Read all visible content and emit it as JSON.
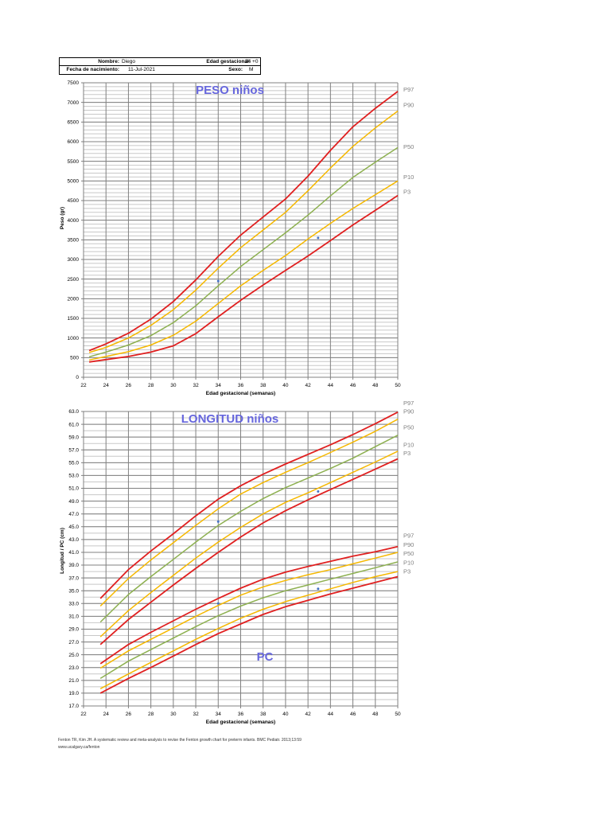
{
  "header": {
    "name_label": "Nombre:",
    "name_value": "Diego",
    "gest_age_label": "Edad gestacional:",
    "gest_age_value": "34 +0",
    "dob_label": "Fecha de nacimiento:",
    "dob_value": "11-Jul-2021",
    "sex_label": "Sexo:",
    "sex_value": "M"
  },
  "colors": {
    "p97_p3": "#e02020",
    "p90_p10": "#f5b800",
    "p50": "#8db050",
    "patient_point": "#4472c4",
    "title": "#6666dd",
    "grid_major": "#808080",
    "grid_minor": "#c8c8c8"
  },
  "footer": {
    "reference": "Fenton TR, Kim JH. A systematic review and meta-analysis to revise the Fenton growth chart for preterm infants. BMC Pediatr. 2013;13:59",
    "url": "www.ucalgary.ca/fenton"
  },
  "chart_data": [
    {
      "type": "line",
      "title": "PESO niños",
      "xlabel": "Edad gestacional (semanas)",
      "ylabel": "Peso (gr)",
      "xlim": [
        22,
        50
      ],
      "ylim": [
        0,
        7500
      ],
      "x_ticks": [
        "22",
        "24",
        "26",
        "28",
        "30",
        "32",
        "34",
        "36",
        "38",
        "40",
        "42",
        "44",
        "46",
        "48",
        "50"
      ],
      "y_ticks": [
        "0",
        "500",
        "1000",
        "1500",
        "2000",
        "2500",
        "3000",
        "3500",
        "4000",
        "4500",
        "5000",
        "5500",
        "6000",
        "6500",
        "7000",
        "7500"
      ],
      "grid": true,
      "legend_position": "right",
      "x": [
        22.5,
        24,
        26,
        28,
        30,
        32,
        34,
        36,
        38,
        40,
        42,
        44,
        46,
        48,
        50
      ],
      "series": [
        {
          "name": "P97",
          "color": "#e02020",
          "values": [
            680,
            850,
            1120,
            1480,
            1930,
            2480,
            3080,
            3620,
            4080,
            4540,
            5120,
            5780,
            6380,
            6850,
            7280
          ]
        },
        {
          "name": "P90",
          "color": "#f5b800",
          "values": [
            630,
            760,
            1000,
            1320,
            1720,
            2220,
            2780,
            3300,
            3750,
            4200,
            4750,
            5330,
            5880,
            6350,
            6780
          ]
        },
        {
          "name": "P50",
          "color": "#8db050",
          "values": [
            520,
            640,
            820,
            1060,
            1390,
            1820,
            2330,
            2820,
            3250,
            3680,
            4130,
            4620,
            5090,
            5480,
            5850
          ]
        },
        {
          "name": "P10",
          "color": "#f5b800",
          "values": [
            440,
            530,
            650,
            820,
            1070,
            1430,
            1880,
            2330,
            2720,
            3100,
            3520,
            3920,
            4300,
            4650,
            5000
          ]
        },
        {
          "name": "P3",
          "color": "#e02020",
          "values": [
            390,
            450,
            530,
            640,
            800,
            1110,
            1540,
            1960,
            2350,
            2720,
            3090,
            3480,
            3880,
            4250,
            4630
          ]
        }
      ],
      "patient_points": [
        {
          "x": 34,
          "y": 2450
        },
        {
          "x": 42.9,
          "y": 3550
        }
      ],
      "right_labels": [
        {
          "text": "P97",
          "y": 7330
        },
        {
          "text": "P90",
          "y": 6930
        },
        {
          "text": "P50",
          "y": 5870
        },
        {
          "text": "P10",
          "y": 5100
        },
        {
          "text": "P3",
          "y": 4720
        }
      ]
    },
    {
      "type": "line",
      "title": "LONGITUD niños",
      "subtitle": "PC",
      "xlabel": "Edad gestacional (semanas)",
      "ylabel": "Longitud / PC (cm)",
      "xlim": [
        22,
        50
      ],
      "ylim": [
        17,
        63
      ],
      "x_ticks": [
        "22",
        "24",
        "26",
        "28",
        "30",
        "32",
        "34",
        "36",
        "38",
        "40",
        "42",
        "44",
        "46",
        "48",
        "50"
      ],
      "y_ticks": [
        "17.0",
        "19.0",
        "21.0",
        "23.0",
        "25.0",
        "27.0",
        "29.0",
        "31.0",
        "33.0",
        "35.0",
        "37.0",
        "39.0",
        "41.0",
        "43.0",
        "45.0",
        "47.0",
        "49.0",
        "51.0",
        "53.0",
        "55.0",
        "57.0",
        "59.0",
        "61.0",
        "63.0"
      ],
      "grid": true,
      "legend_position": "right",
      "x": [
        23.5,
        26,
        28,
        30,
        32,
        34,
        36,
        38,
        40,
        42,
        44,
        46,
        48,
        50
      ],
      "series": [
        {
          "name": "Longitud P97",
          "color": "#e02020",
          "values": [
            33.8,
            38.3,
            41.2,
            43.9,
            46.7,
            49.3,
            51.4,
            53.2,
            54.8,
            56.3,
            57.8,
            59.4,
            61.1,
            62.9
          ]
        },
        {
          "name": "Longitud P90",
          "color": "#f5b800",
          "values": [
            32.6,
            36.9,
            39.8,
            42.5,
            45.2,
            47.8,
            50.1,
            51.9,
            53.5,
            55.0,
            56.6,
            58.2,
            59.9,
            61.8
          ]
        },
        {
          "name": "Longitud P50",
          "color": "#8db050",
          "values": [
            30.1,
            34.4,
            37.2,
            39.9,
            42.6,
            45.2,
            47.4,
            49.4,
            51.1,
            52.6,
            54.1,
            55.7,
            57.5,
            59.3
          ]
        },
        {
          "name": "Longitud P10",
          "color": "#f5b800",
          "values": [
            27.8,
            31.9,
            34.7,
            37.4,
            40.1,
            42.6,
            44.9,
            47.0,
            48.8,
            50.3,
            51.9,
            53.5,
            55.1,
            56.8
          ]
        },
        {
          "name": "Longitud P3",
          "color": "#e02020",
          "values": [
            26.6,
            30.5,
            33.2,
            35.9,
            38.5,
            41.0,
            43.4,
            45.6,
            47.5,
            49.2,
            50.8,
            52.4,
            54.0,
            55.6
          ]
        },
        {
          "name": "PC P97",
          "color": "#e02020",
          "values": [
            23.6,
            26.6,
            28.5,
            30.3,
            32.1,
            33.8,
            35.4,
            36.8,
            37.9,
            38.8,
            39.6,
            40.4,
            41.1,
            41.9
          ]
        },
        {
          "name": "PC P90",
          "color": "#f5b800",
          "values": [
            22.9,
            25.6,
            27.4,
            29.2,
            31.0,
            32.7,
            34.3,
            35.6,
            36.6,
            37.5,
            38.3,
            39.2,
            40.1,
            41.0
          ]
        },
        {
          "name": "PC P50",
          "color": "#8db050",
          "values": [
            21.3,
            24.0,
            25.8,
            27.6,
            29.4,
            31.1,
            32.6,
            33.9,
            35.0,
            35.9,
            36.8,
            37.7,
            38.6,
            39.5
          ]
        },
        {
          "name": "PC P10",
          "color": "#f5b800",
          "values": [
            19.7,
            22.0,
            23.8,
            25.6,
            27.4,
            29.1,
            30.7,
            32.1,
            33.3,
            34.3,
            35.3,
            36.3,
            37.2,
            38.0
          ]
        },
        {
          "name": "PC P3",
          "color": "#e02020",
          "values": [
            19.0,
            21.3,
            23.0,
            24.8,
            26.6,
            28.3,
            29.8,
            31.3,
            32.5,
            33.5,
            34.5,
            35.4,
            36.3,
            37.2
          ]
        }
      ],
      "patient_points": [
        {
          "x": 34,
          "y": 45.8
        },
        {
          "x": 42.9,
          "y": 50.5
        },
        {
          "x": 34,
          "y": 33.0
        },
        {
          "x": 42.9,
          "y": 35.3
        }
      ],
      "right_labels": [
        {
          "text": "P97",
          "y": 64.3
        },
        {
          "text": "P90",
          "y": 63.0
        },
        {
          "text": "P50",
          "y": 60.5
        },
        {
          "text": "P10",
          "y": 57.8
        },
        {
          "text": "P3",
          "y": 56.5
        },
        {
          "text": "P97",
          "y": 43.6
        },
        {
          "text": "P90",
          "y": 42.2
        },
        {
          "text": "P50",
          "y": 40.8
        },
        {
          "text": "P10",
          "y": 39.4
        },
        {
          "text": "P3",
          "y": 38.0
        }
      ]
    }
  ]
}
